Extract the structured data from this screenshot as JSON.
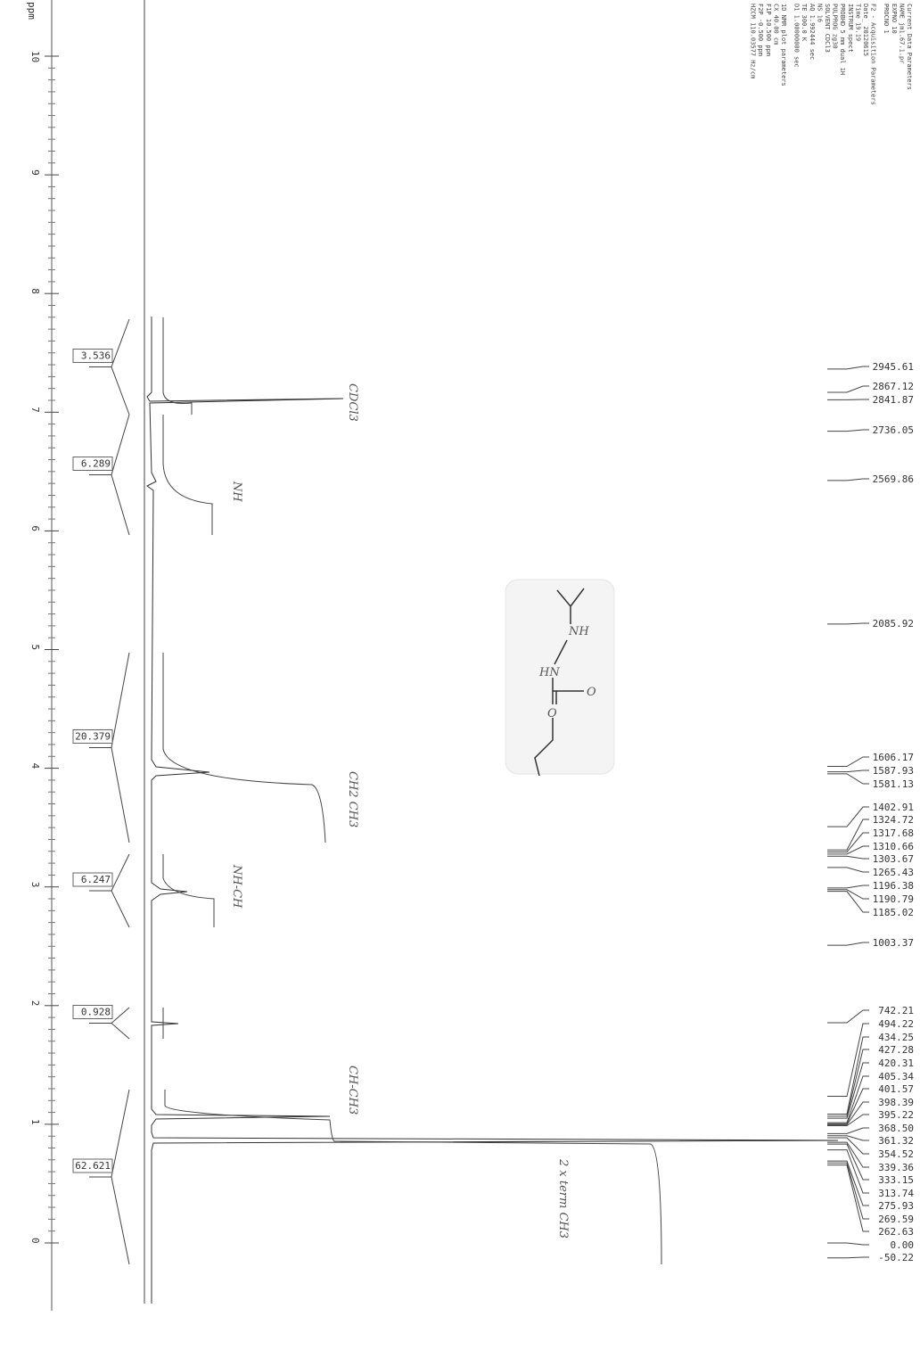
{
  "axis": {
    "unit": "ppm",
    "ticks": [
      "10",
      "9",
      "8",
      "7",
      "6",
      "5",
      "4",
      "3",
      "2",
      "1",
      "0"
    ]
  },
  "integrals": [
    "3.536",
    "6.289",
    "20.379",
    "6.247",
    "0.928",
    "62.621"
  ],
  "peaks": [
    "2945.61",
    "2867.12",
    "2841.87",
    "2736.05",
    "2569.86",
    "2085.92",
    "1606.17",
    "1587.93",
    "1581.13",
    "1402.91",
    "1324.72",
    "1317.68",
    "1310.66",
    "1303.67",
    "1265.43",
    "1196.38",
    "1190.79",
    "1185.02",
    "1003.37",
    "742.21",
    "494.22",
    "434.25",
    "427.28",
    "420.31",
    "405.34",
    "401.57",
    "398.39",
    "395.22",
    "368.50",
    "361.32",
    "354.52",
    "339.36",
    "333.15",
    "313.74",
    "275.93",
    "269.59",
    "262.63",
    "0.00",
    "-50.22"
  ],
  "parameters": [
    "Current Data Parameters",
    "NAME      jm1.67.1.pr",
    "EXPNO             10",
    "PROCNO             1",
    "F2 - Acquisition Parameters",
    "Date_        20120615",
    "Time            19.19",
    "INSTRUM         spect",
    "PROBHD   5 mm dual 1H",
    "PULPROG         zg30",
    "SOLVENT         CDCl3",
    "NS                16",
    "AQ      1.992444 sec",
    "TE           300.0 K",
    "D1     1.00000000 sec",
    "1D NMR plot parameters",
    "CX          40.00 cm",
    "F1P        10.500 ppm",
    "F2P        -0.500 ppm",
    "HZCM  110.03577 Hz/cm"
  ],
  "annotations": {
    "solvent": "CDCl3",
    "nh": "NH",
    "ethyl": "CH2 CH3",
    "nhch": "NH-CH",
    "chch3": "CH-CH3",
    "term": "2 x term CH3"
  },
  "structure": {
    "nh_top": "NH",
    "nh_bottom": "HN",
    "carbonyl_o": "O",
    "ester_o": "O"
  }
}
